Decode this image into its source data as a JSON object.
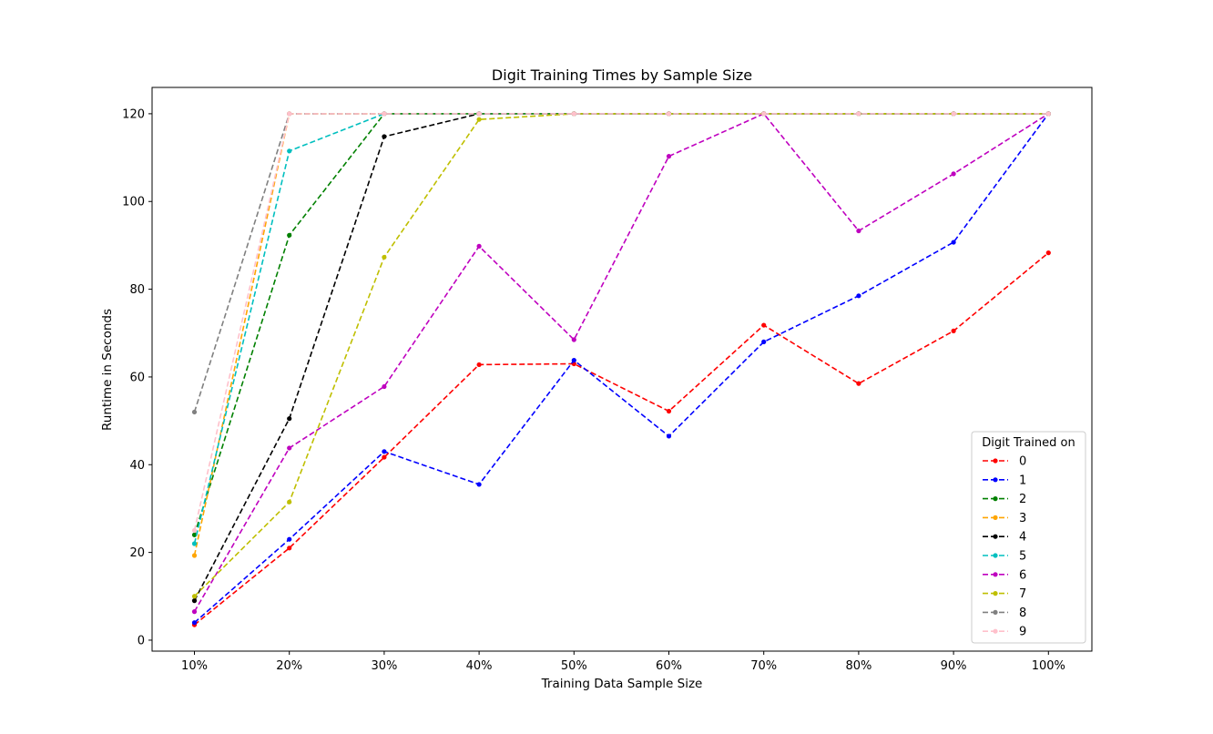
{
  "chart_data": {
    "type": "line",
    "title": "Digit Training Times by Sample Size",
    "xlabel": "Training Data Sample Size",
    "ylabel": "Runtime in Seconds",
    "categories": [
      "10%",
      "20%",
      "30%",
      "40%",
      "50%",
      "60%",
      "70%",
      "80%",
      "90%",
      "100%"
    ],
    "ylim": [
      -2.5,
      126
    ],
    "yticks": [
      0,
      20,
      40,
      60,
      80,
      100,
      120
    ],
    "grid": false,
    "legend": {
      "title": "Digit Trained on",
      "placement": "lower-right"
    },
    "series": [
      {
        "name": "0",
        "color": "#ff0000",
        "values": [
          3.5,
          21,
          41.7,
          62.8,
          63,
          52.2,
          71.8,
          58.5,
          70.5,
          88.3
        ]
      },
      {
        "name": "1",
        "color": "#0000ff",
        "values": [
          4.0,
          23,
          43,
          35.5,
          63.8,
          46.5,
          68,
          78.5,
          90.7,
          120
        ]
      },
      {
        "name": "2",
        "color": "#008000",
        "values": [
          24,
          92.3,
          120,
          120,
          120,
          120,
          120,
          120,
          120,
          120
        ]
      },
      {
        "name": "3",
        "color": "#ffa500",
        "values": [
          19.3,
          120,
          120,
          120,
          120,
          120,
          120,
          120,
          120,
          120
        ]
      },
      {
        "name": "4",
        "color": "#000000",
        "values": [
          9.0,
          50.5,
          114.8,
          120,
          120,
          120,
          120,
          120,
          120,
          120
        ]
      },
      {
        "name": "5",
        "color": "#00bfbf",
        "values": [
          22,
          111.5,
          120,
          120,
          120,
          120,
          120,
          120,
          120,
          120
        ]
      },
      {
        "name": "6",
        "color": "#bf00bf",
        "values": [
          6.5,
          43.8,
          57.8,
          89.8,
          68.5,
          110.3,
          120,
          93.3,
          106.3,
          120
        ]
      },
      {
        "name": "7",
        "color": "#bfbf00",
        "values": [
          10,
          31.5,
          87.3,
          118.7,
          120,
          120,
          120,
          120,
          120,
          120
        ]
      },
      {
        "name": "8",
        "color": "#808080",
        "values": [
          52,
          120,
          120,
          120,
          120,
          120,
          120,
          120,
          120,
          120
        ]
      },
      {
        "name": "9",
        "color": "#ffc0cb",
        "values": [
          25,
          120,
          120,
          120,
          120,
          120,
          120,
          120,
          120,
          120
        ]
      }
    ]
  }
}
